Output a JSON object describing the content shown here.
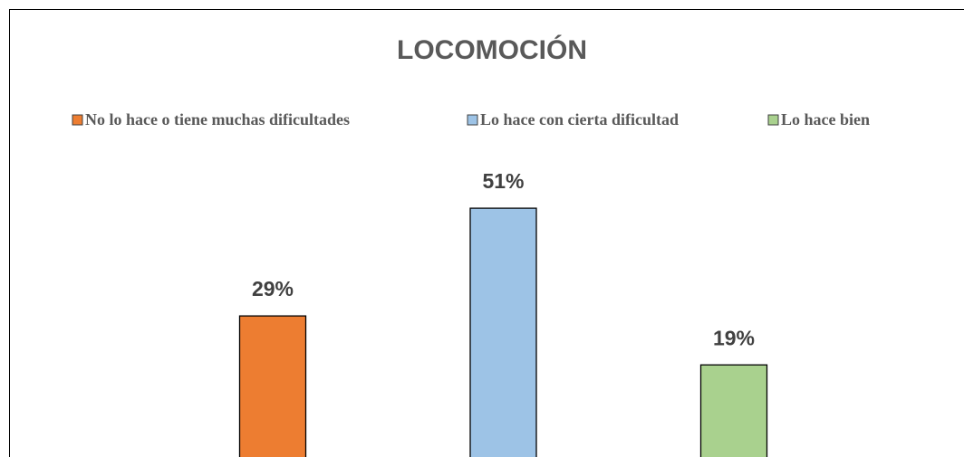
{
  "chart_data": {
    "type": "bar",
    "title": "LOCOMOCIÓN",
    "series": [
      {
        "name": "No lo hace o tiene muchas dificultades",
        "color": "#ed7d31",
        "values": [
          29
        ],
        "value_labels": [
          "29%"
        ]
      },
      {
        "name": "Lo hace con cierta dificultad",
        "color": "#9dc3e6",
        "values": [
          51
        ],
        "value_labels": [
          "51%"
        ]
      },
      {
        "name": "Lo hace bien",
        "color": "#a9d18e",
        "values": [
          19
        ],
        "value_labels": [
          "19%"
        ]
      }
    ]
  }
}
